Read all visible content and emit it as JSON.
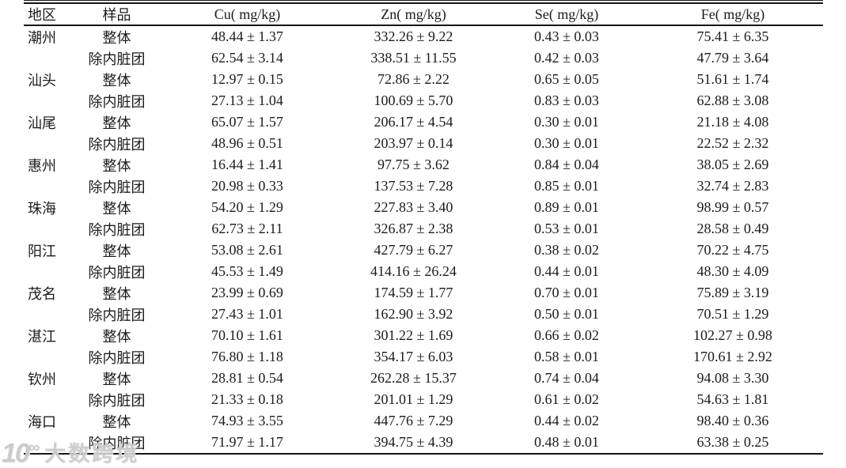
{
  "table": {
    "columns": [
      "地区",
      "样品",
      "Cu( mg/kg)",
      "Zn( mg/kg)",
      "Se( mg/kg)",
      "Fe( mg/kg)"
    ],
    "regions": [
      {
        "region": "潮州",
        "samples": [
          {
            "sample": "整体",
            "cu": "48.44 ± 1.37",
            "zn": "332.26 ± 9.22",
            "se": "0.43 ± 0.03",
            "fe": "75.41 ± 6.35"
          },
          {
            "sample": "除内脏团",
            "cu": "62.54 ± 3.14",
            "zn": "338.51 ± 11.55",
            "se": "0.42 ± 0.03",
            "fe": "47.79 ± 3.64"
          }
        ]
      },
      {
        "region": "汕头",
        "samples": [
          {
            "sample": "整体",
            "cu": "12.97 ± 0.15",
            "zn": "72.86 ± 2.22",
            "se": "0.65 ± 0.05",
            "fe": "51.61 ± 1.74"
          },
          {
            "sample": "除内脏团",
            "cu": "27.13 ± 1.04",
            "zn": "100.69 ± 5.70",
            "se": "0.83 ± 0.03",
            "fe": "62.88 ± 3.08"
          }
        ]
      },
      {
        "region": "汕尾",
        "samples": [
          {
            "sample": "整体",
            "cu": "65.07 ± 1.57",
            "zn": "206.17 ± 4.54",
            "se": "0.30 ± 0.01",
            "fe": "21.18 ± 4.08"
          },
          {
            "sample": "除内脏团",
            "cu": "48.96 ± 0.51",
            "zn": "203.97 ± 0.14",
            "se": "0.30 ± 0.01",
            "fe": "22.52 ± 2.32"
          }
        ]
      },
      {
        "region": "惠州",
        "samples": [
          {
            "sample": "整体",
            "cu": "16.44 ± 1.41",
            "zn": "97.75 ± 3.62",
            "se": "0.84 ± 0.04",
            "fe": "38.05 ± 2.69"
          },
          {
            "sample": "除内脏团",
            "cu": "20.98 ± 0.33",
            "zn": "137.53 ± 7.28",
            "se": "0.85 ± 0.01",
            "fe": "32.74 ± 2.83"
          }
        ]
      },
      {
        "region": "珠海",
        "samples": [
          {
            "sample": "整体",
            "cu": "54.20 ± 1.29",
            "zn": "227.83 ± 3.40",
            "se": "0.89 ± 0.01",
            "fe": "98.99 ± 0.57"
          },
          {
            "sample": "除内脏团",
            "cu": "62.73 ± 2.11",
            "zn": "326.87 ± 2.38",
            "se": "0.53 ± 0.01",
            "fe": "28.58 ± 0.49"
          }
        ]
      },
      {
        "region": "阳江",
        "samples": [
          {
            "sample": "整体",
            "cu": "53.08 ± 2.61",
            "zn": "427.79 ± 6.27",
            "se": "0.38 ± 0.02",
            "fe": "70.22 ± 4.75"
          },
          {
            "sample": "除内脏团",
            "cu": "45.53 ± 1.49",
            "zn": "414.16 ± 26.24",
            "se": "0.44 ± 0.01",
            "fe": "48.30 ± 4.09"
          }
        ]
      },
      {
        "region": "茂名",
        "samples": [
          {
            "sample": "整体",
            "cu": "23.99 ± 0.69",
            "zn": "174.59 ± 1.77",
            "se": "0.70 ± 0.01",
            "fe": "75.89 ± 3.19"
          },
          {
            "sample": "除内脏团",
            "cu": "27.43 ± 1.01",
            "zn": "162.90 ± 3.92",
            "se": "0.50 ± 0.01",
            "fe": "70.51 ± 1.29"
          }
        ]
      },
      {
        "region": "湛江",
        "samples": [
          {
            "sample": "整体",
            "cu": "70.10 ± 1.61",
            "zn": "301.22 ± 1.69",
            "se": "0.66 ± 0.02",
            "fe": "102.27 ± 0.98"
          },
          {
            "sample": "除内脏团",
            "cu": "76.80 ± 1.18",
            "zn": "354.17 ± 6.03",
            "se": "0.58 ± 0.01",
            "fe": "170.61 ± 2.92"
          }
        ]
      },
      {
        "region": "钦州",
        "samples": [
          {
            "sample": "整体",
            "cu": "28.81 ± 0.54",
            "zn": "262.28 ± 15.37",
            "se": "0.74 ± 0.04",
            "fe": "94.08 ± 3.30"
          },
          {
            "sample": "除内脏团",
            "cu": "21.33 ± 0.18",
            "zn": "201.01 ± 1.29",
            "se": "0.61 ± 0.02",
            "fe": "54.63 ± 1.81"
          }
        ]
      },
      {
        "region": "海口",
        "samples": [
          {
            "sample": "整体",
            "cu": "74.93 ± 3.55",
            "zn": "447.76 ± 7.29",
            "se": "0.44 ± 0.02",
            "fe": "98.40 ± 0.36"
          },
          {
            "sample": "除内脏团",
            "cu": "71.97 ± 1.17",
            "zn": "394.75 ± 4.39",
            "se": "0.48 ± 0.01",
            "fe": "63.38 ± 0.25"
          }
        ]
      }
    ]
  },
  "watermark": {
    "logo_main": "10",
    "logo_sup": "∞",
    "text": "大数跨境",
    "color": "#c9c9c9"
  }
}
